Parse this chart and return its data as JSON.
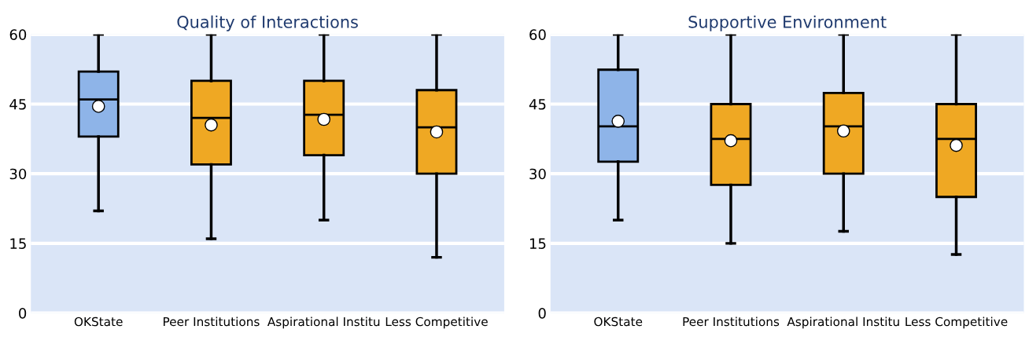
{
  "chart_data": [
    {
      "type": "box",
      "title": "Quality of Interactions",
      "categories": [
        "OKState",
        "Peer Institutions",
        "Aspirational Institu",
        "Less Competitive"
      ],
      "colors": [
        "#8eb4e8",
        "#efa823",
        "#efa823",
        "#efa823"
      ],
      "boxes": [
        {
          "low": 22,
          "q1": 38,
          "median": 46,
          "q3": 52,
          "high": 60,
          "mean": 44.5
        },
        {
          "low": 16,
          "q1": 32,
          "median": 42,
          "q3": 50,
          "high": 60,
          "mean": 40.5
        },
        {
          "low": 20,
          "q1": 34,
          "median": 42.7,
          "q3": 50,
          "high": 60,
          "mean": 41.7
        },
        {
          "low": 12,
          "q1": 30,
          "median": 40,
          "q3": 48,
          "high": 60,
          "mean": 39
        }
      ],
      "ylim": [
        0,
        60
      ],
      "yticks": [
        0,
        15,
        30,
        45,
        60
      ],
      "grid": "y"
    },
    {
      "type": "box",
      "title": "Supportive Environment",
      "categories": [
        "OKState",
        "Peer Institutions",
        "Aspirational Institu",
        "Less Competitive"
      ],
      "colors": [
        "#8eb4e8",
        "#efa823",
        "#efa823",
        "#efa823"
      ],
      "boxes": [
        {
          "low": 20,
          "q1": 32.6,
          "median": 40.2,
          "q3": 52.4,
          "high": 60,
          "mean": 41.3
        },
        {
          "low": 15,
          "q1": 27.6,
          "median": 37.5,
          "q3": 45,
          "high": 60,
          "mean": 37.1
        },
        {
          "low": 17.6,
          "q1": 30,
          "median": 40.2,
          "q3": 47.4,
          "high": 60,
          "mean": 39.2
        },
        {
          "low": 12.6,
          "q1": 25,
          "median": 37.5,
          "q3": 45,
          "high": 60,
          "mean": 36.1
        }
      ],
      "ylim": [
        0,
        60
      ],
      "yticks": [
        0,
        15,
        30,
        45,
        60
      ],
      "grid": "y"
    }
  ]
}
